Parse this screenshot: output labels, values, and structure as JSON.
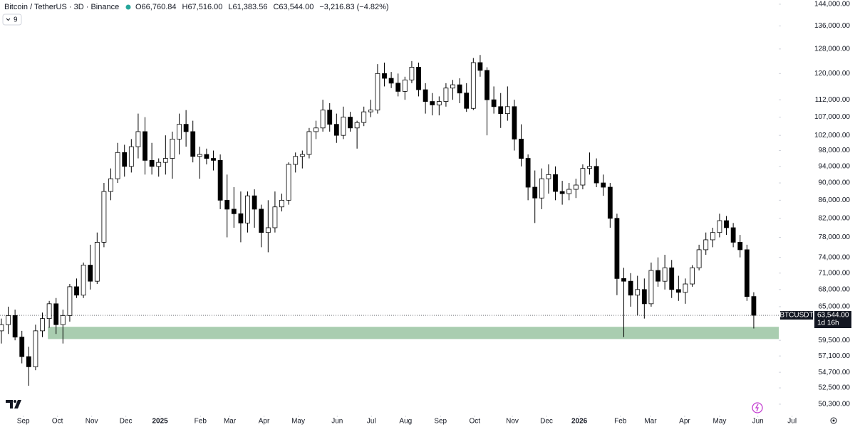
{
  "chart_data": {
    "type": "candlestick",
    "title": "Bitcoin / TetherUS · 3D · Binance",
    "header_values": [
      "O66,760.84",
      "H67,516.00",
      "L61,383.56",
      "C63,544.00",
      "−3,216.83 (−4.82%)"
    ],
    "indicator_count": "9",
    "symbol": "BTCUSDT",
    "last_price": {
      "value": 63544,
      "label": "63,544.00"
    },
    "countdown": "1d 16h",
    "log_scale": true,
    "up_color": "#ffffff",
    "down_color": "#000000",
    "wick_color": "#000000",
    "open": [
      61000,
      62000,
      63500,
      60000,
      57000,
      55500,
      61000,
      63000,
      65500,
      62000,
      63500,
      68500,
      67000,
      72500,
      69500,
      77000,
      88000,
      91000,
      97500,
      94000,
      99000,
      103000,
      95500,
      94000,
      95000,
      96000,
      101000,
      105000,
      103000,
      96500,
      97000,
      96000,
      95500,
      86000,
      84000,
      83000,
      81000,
      87000,
      84000,
      79000,
      80000,
      84500,
      86000,
      94500,
      96500,
      97000,
      103000,
      104000,
      109000,
      105000,
      102000,
      107000,
      104000,
      105500,
      108500,
      109000,
      120000,
      118500,
      117000,
      114500,
      118000,
      122000,
      115000,
      111500,
      110500,
      111500,
      115500,
      116500,
      114000,
      109500,
      123500,
      121000,
      112000,
      110000,
      108000,
      110000,
      101000,
      96000,
      89000,
      86500,
      91000,
      92000,
      88000,
      87500,
      88500,
      89500,
      93500,
      94000,
      90000,
      89000,
      82000,
      70000,
      69500,
      67000,
      68000,
      65500,
      71500,
      69500,
      72000,
      68000,
      67500,
      69000,
      72000,
      75500,
      77500,
      79000,
      81500,
      80000,
      77000,
      75500,
      66760.84
    ],
    "high": [
      63000,
      65000,
      64500,
      61000,
      58500,
      62000,
      64000,
      66000,
      66500,
      64500,
      69000,
      70000,
      73000,
      76500,
      79000,
      90000,
      93500,
      100000,
      99500,
      101000,
      108000,
      107000,
      100000,
      96000,
      102000,
      103000,
      108000,
      109000,
      106000,
      99000,
      98500,
      98000,
      97000,
      92000,
      89000,
      88000,
      88000,
      88500,
      85000,
      86000,
      88000,
      87500,
      95000,
      97500,
      98000,
      104000,
      106000,
      112000,
      111000,
      108000,
      110000,
      108500,
      106000,
      110000,
      112000,
      123000,
      123500,
      120500,
      120000,
      119000,
      124000,
      123500,
      117000,
      114000,
      113000,
      117000,
      118000,
      118500,
      117000,
      125000,
      126000,
      122000,
      116000,
      114000,
      116000,
      112000,
      105000,
      97000,
      93000,
      93500,
      94500,
      94000,
      90500,
      90000,
      91000,
      94500,
      97500,
      96000,
      92000,
      90000,
      83000,
      72000,
      71000,
      70500,
      70000,
      73000,
      74000,
      74500,
      73500,
      70500,
      70000,
      72500,
      76500,
      79000,
      80000,
      83000,
      82500,
      81000,
      78500,
      76500,
      67516
    ],
    "low": [
      59000,
      60500,
      59500,
      56000,
      52800,
      55000,
      60000,
      61500,
      60500,
      59000,
      62500,
      66500,
      66500,
      68000,
      69000,
      76000,
      86000,
      90000,
      91500,
      92500,
      96000,
      92000,
      92000,
      91500,
      92000,
      91000,
      97000,
      99000,
      95000,
      91000,
      94500,
      93000,
      84000,
      78000,
      80000,
      77000,
      79000,
      80000,
      76000,
      75000,
      79000,
      83500,
      85000,
      92500,
      93500,
      96000,
      101000,
      103000,
      103000,
      100000,
      101000,
      103000,
      98500,
      104500,
      107000,
      108000,
      116000,
      115500,
      113000,
      112000,
      117000,
      113000,
      108000,
      107500,
      107500,
      110000,
      112000,
      111000,
      108500,
      109000,
      119000,
      102000,
      108000,
      104000,
      106000,
      98000,
      94000,
      86000,
      81000,
      84000,
      87500,
      86000,
      85000,
      86000,
      86500,
      88500,
      92000,
      89000,
      87000,
      80000,
      67000,
      60000,
      65000,
      63500,
      63000,
      65000,
      68500,
      68000,
      66500,
      66000,
      65500,
      68500,
      71500,
      74500,
      76000,
      78000,
      78500,
      76000,
      74000,
      66000,
      61383.56
    ],
    "close": [
      62000,
      63500,
      60000,
      57000,
      55500,
      61000,
      63000,
      65500,
      62000,
      63500,
      68500,
      67000,
      72500,
      69500,
      77000,
      88000,
      91000,
      97500,
      94000,
      99000,
      103000,
      95500,
      94000,
      95000,
      96000,
      101000,
      105000,
      103000,
      96500,
      97000,
      96000,
      95500,
      86000,
      84000,
      83000,
      81000,
      87000,
      84000,
      79000,
      80000,
      84500,
      86000,
      94500,
      96500,
      97000,
      103000,
      104000,
      109000,
      105000,
      102000,
      107000,
      104000,
      105500,
      108500,
      109000,
      120000,
      118500,
      117000,
      114500,
      118000,
      122000,
      115000,
      111500,
      110500,
      111500,
      115500,
      116500,
      114000,
      109500,
      123500,
      121000,
      112000,
      110000,
      108000,
      110000,
      101000,
      96000,
      89000,
      86500,
      91000,
      92000,
      88000,
      87500,
      88500,
      89500,
      93500,
      94000,
      90000,
      89000,
      82000,
      70000,
      69500,
      67000,
      68000,
      65500,
      71500,
      69500,
      72000,
      68000,
      67500,
      69000,
      72000,
      75500,
      77500,
      79000,
      81500,
      80000,
      77000,
      75500,
      66760.84,
      63544
    ],
    "zone": {
      "from": 6.8,
      "low": 59700,
      "high": 61650,
      "color": "#a9cdb0"
    },
    "xlim": [
      -0.2,
      124.8
    ],
    "xticks": [
      {
        "value": 3.2,
        "label": "Sep"
      },
      {
        "value": 8.2,
        "label": "Oct"
      },
      {
        "value": 13.2,
        "label": "Nov"
      },
      {
        "value": 18.2,
        "label": "Dec"
      },
      {
        "value": 23.2,
        "label": "2025"
      },
      {
        "value": 29.1,
        "label": "Feb"
      },
      {
        "value": 33.4,
        "label": "Mar"
      },
      {
        "value": 38.4,
        "label": "Apr"
      },
      {
        "value": 43.4,
        "label": "May"
      },
      {
        "value": 49.1,
        "label": "Jun"
      },
      {
        "value": 54.1,
        "label": "Jul"
      },
      {
        "value": 59.1,
        "label": "Aug"
      },
      {
        "value": 64.2,
        "label": "Sep"
      },
      {
        "value": 69.2,
        "label": "Oct"
      },
      {
        "value": 74.7,
        "label": "Nov"
      },
      {
        "value": 79.7,
        "label": "Dec"
      },
      {
        "value": 84.5,
        "label": "2026"
      },
      {
        "value": 90.5,
        "label": "Feb"
      },
      {
        "value": 94.9,
        "label": "Mar"
      },
      {
        "value": 99.9,
        "label": "Apr"
      },
      {
        "value": 105,
        "label": "May"
      },
      {
        "value": 110.6,
        "label": "Jun"
      },
      {
        "value": 115.6,
        "label": "Jul"
      }
    ],
    "ylim": [
      47370,
      145600
    ],
    "yticks": [
      {
        "value": 144000,
        "label": "144,000.00"
      },
      {
        "value": 136000,
        "label": "136,000.00"
      },
      {
        "value": 128000,
        "label": "128,000.00"
      },
      {
        "value": 120000,
        "label": "120,000.00"
      },
      {
        "value": 112000,
        "label": "112,000.00"
      },
      {
        "value": 107000,
        "label": "107,000.00"
      },
      {
        "value": 102000,
        "label": "102,000.00"
      },
      {
        "value": 98000,
        "label": "98,000.00"
      },
      {
        "value": 94000,
        "label": "94,000.00"
      },
      {
        "value": 90000,
        "label": "90,000.00"
      },
      {
        "value": 86000,
        "label": "86,000.00"
      },
      {
        "value": 82000,
        "label": "82,000.00"
      },
      {
        "value": 78000,
        "label": "78,000.00"
      },
      {
        "value": 74000,
        "label": "74,000.00"
      },
      {
        "value": 71000,
        "label": "71,000.00"
      },
      {
        "value": 68000,
        "label": "68,000.00"
      },
      {
        "value": 65000,
        "label": "65,000.00"
      },
      {
        "value": 59500,
        "label": "59,500.00"
      },
      {
        "value": 57100,
        "label": "57,100.00"
      },
      {
        "value": 54700,
        "label": "54,700.00"
      },
      {
        "value": 52500,
        "label": "52,500.00"
      },
      {
        "value": 50300,
        "label": "50,300.00"
      }
    ]
  }
}
